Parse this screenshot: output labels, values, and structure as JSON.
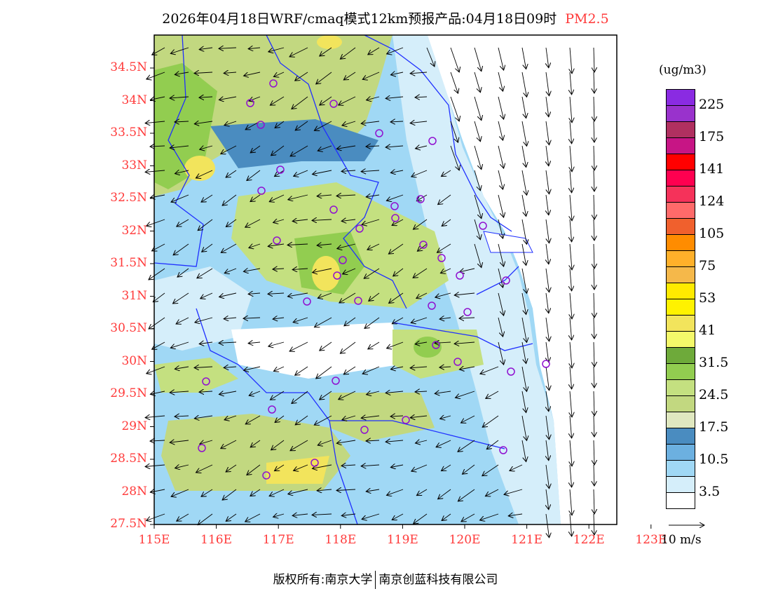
{
  "title": {
    "text": "2026年04月18日WRF/cmaq模式12km预报产品:04月18日09时",
    "pollutant": "PM2.5"
  },
  "axes": {
    "lat_labels": [
      "34.5N",
      "34N",
      "33.5N",
      "33N",
      "32.5N",
      "32N",
      "31.5N",
      "31N",
      "30.5N",
      "30N",
      "29.5N",
      "29N",
      "28.5N",
      "28N",
      "27.5N"
    ],
    "lat_values": [
      34.5,
      34,
      33.5,
      33,
      32.5,
      32,
      31.5,
      31,
      30.5,
      30,
      29.5,
      29,
      28.5,
      28,
      27.5
    ],
    "lon_labels": [
      "115E",
      "116E",
      "117E",
      "118E",
      "119E",
      "120E",
      "121E",
      "122E",
      "123E"
    ],
    "lon_values": [
      115,
      116,
      117,
      118,
      119,
      120,
      121,
      122,
      123
    ],
    "label_color": "#ff3a3a"
  },
  "legend": {
    "unit": "(ug/m3)",
    "colors": [
      "#8a2be2",
      "#9932cc",
      "#b03060",
      "#c71585",
      "#ff0000",
      "#ff0050",
      "#f5325a",
      "#ff6a6a",
      "#f0602d",
      "#ff8c00",
      "#ffb02a",
      "#f5b84a",
      "#ffea00",
      "#fff200",
      "#f2e45c",
      "#f4f96a",
      "#6eaa3a",
      "#92cd50",
      "#c4e080",
      "#c2d880",
      "#e0e8c0",
      "#4a8cc0",
      "#6cb0e0",
      "#a0d8f5",
      "#d5eefa",
      "#ffffff"
    ],
    "labels": [
      "225",
      "175",
      "141",
      "124",
      "105",
      "75",
      "53",
      "41",
      "31.5",
      "24.5",
      "17.5",
      "10.5",
      "3.5"
    ]
  },
  "wind_reference": {
    "label": "10 m/s"
  },
  "footer": {
    "left": "版权所有:南京大学",
    "right": "南京创蓝科技有限公司"
  }
}
